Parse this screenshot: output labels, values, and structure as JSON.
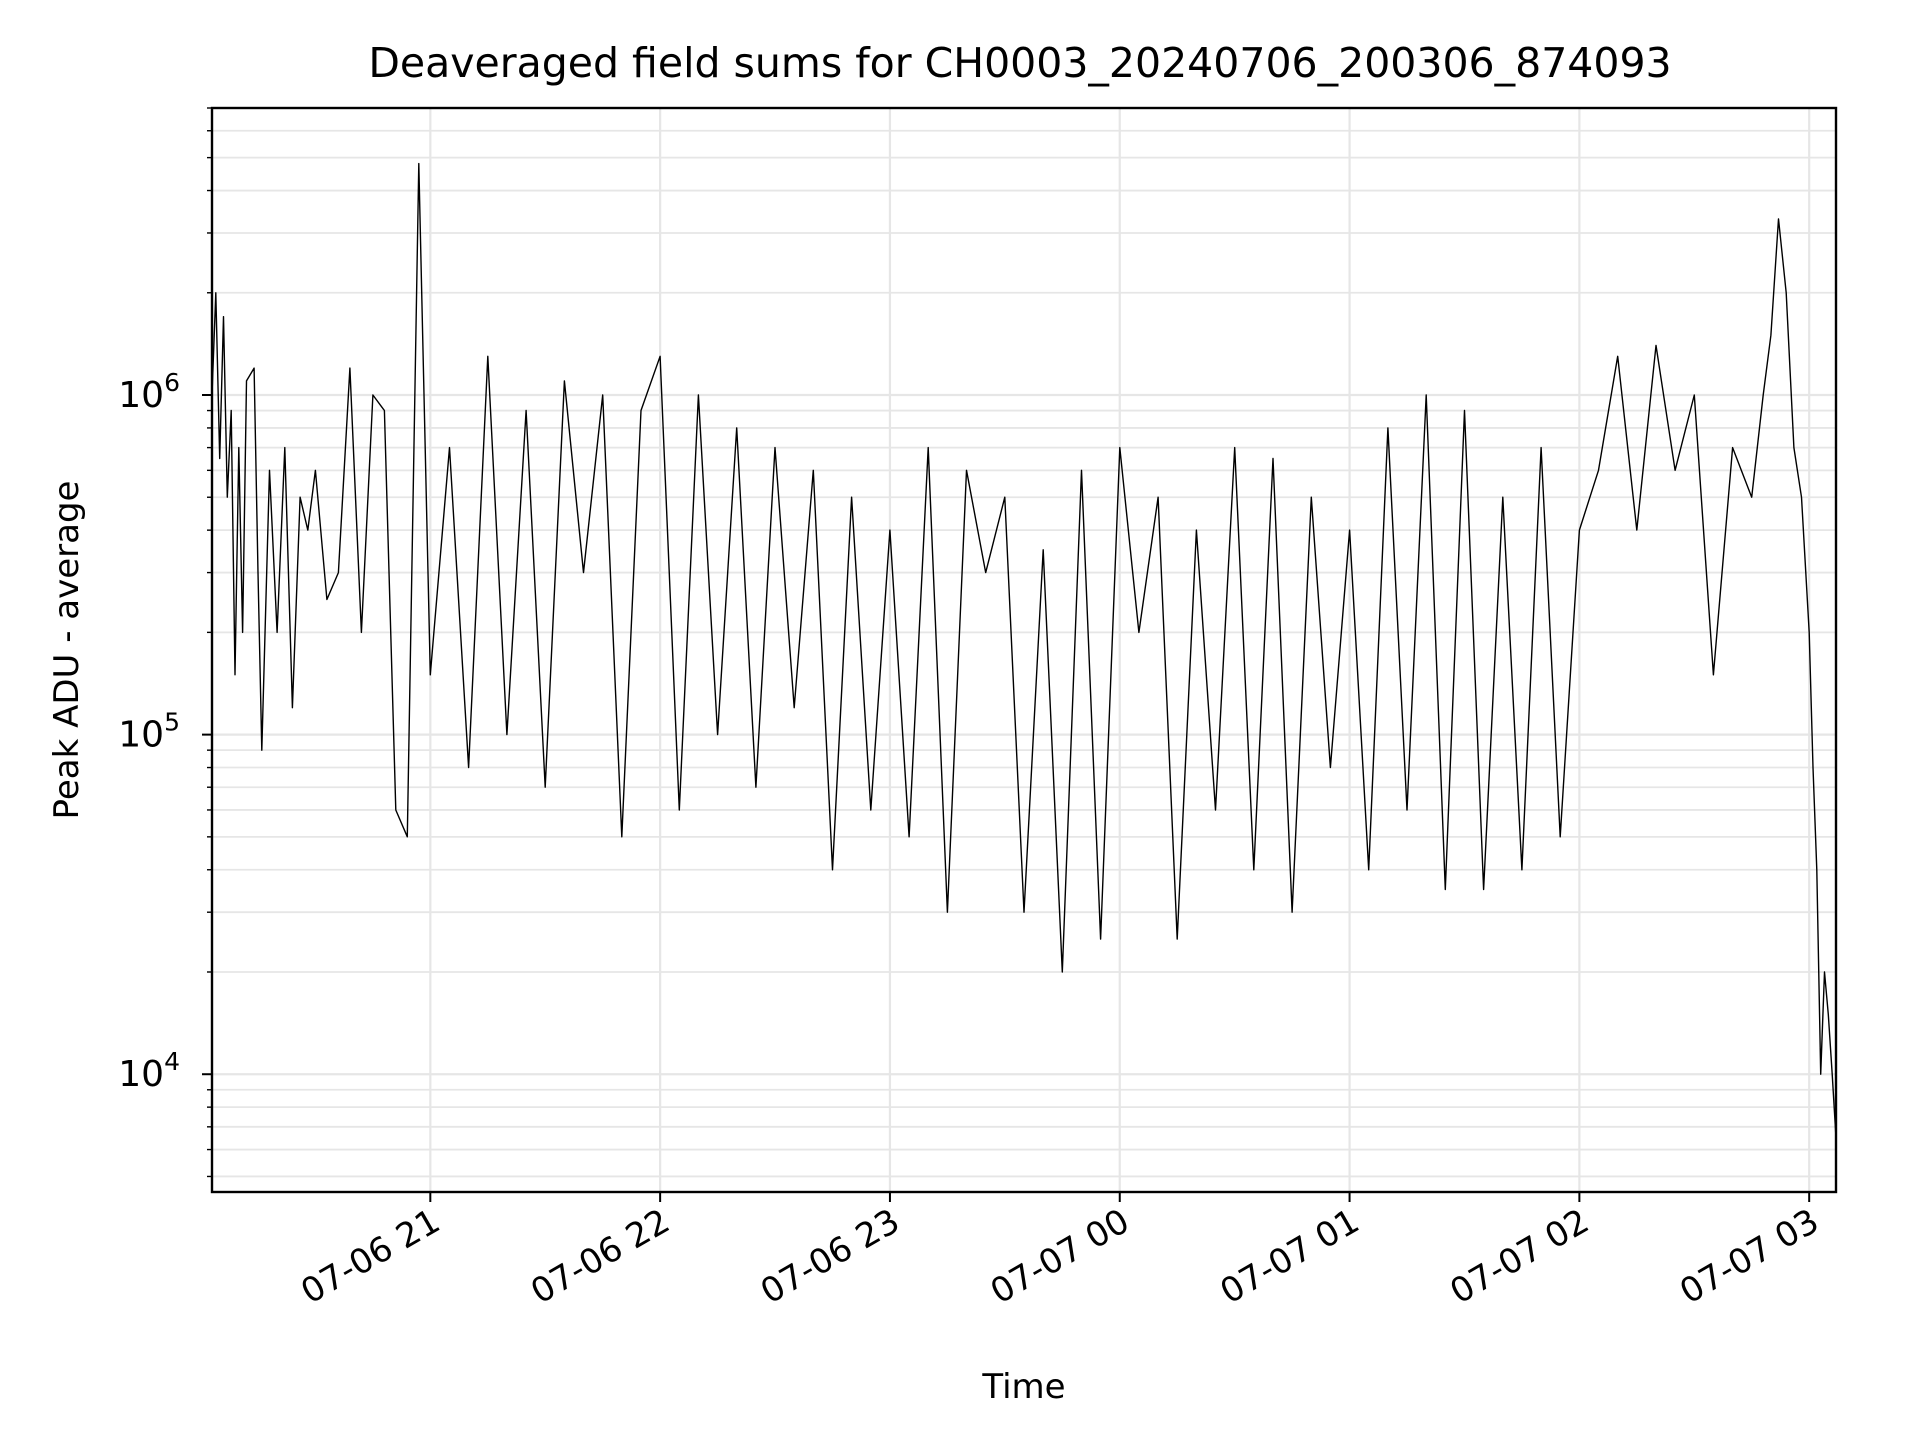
{
  "chart_data": {
    "type": "line",
    "title": "Deaveraged field sums for CH0003_20240706_200306_874093",
    "xlabel": "Time",
    "ylabel": "Peak ADU - average",
    "yscale": "log",
    "ylim": [
      4500,
      7000000
    ],
    "xlim": [
      "07-06 20:03",
      "07-07 03:07"
    ],
    "grid": true,
    "line_color": "#000000",
    "grid_color": "#e6e6e6",
    "x_ticks": [
      {
        "time": "07-06 21:00",
        "label": "07-06 21"
      },
      {
        "time": "07-06 22:00",
        "label": "07-06 22"
      },
      {
        "time": "07-06 23:00",
        "label": "07-06 23"
      },
      {
        "time": "07-07 00:00",
        "label": "07-07 00"
      },
      {
        "time": "07-07 01:00",
        "label": "07-07 01"
      },
      {
        "time": "07-07 02:00",
        "label": "07-07 02"
      },
      {
        "time": "07-07 03:00",
        "label": "07-07 03"
      }
    ],
    "y_ticks": [
      {
        "value": 10000,
        "base": "10",
        "exp": "4"
      },
      {
        "value": 100000,
        "base": "10",
        "exp": "5"
      },
      {
        "value": 1000000,
        "base": "10",
        "exp": "6"
      }
    ],
    "series": [
      {
        "x": [
          "07-06 20:03",
          "07-06 20:04",
          "07-06 20:05",
          "07-06 20:06",
          "07-06 20:07",
          "07-06 20:08",
          "07-06 20:09",
          "07-06 20:10",
          "07-06 20:11",
          "07-06 20:12",
          "07-06 20:14",
          "07-06 20:15",
          "07-06 20:16",
          "07-06 20:18",
          "07-06 20:20",
          "07-06 20:22",
          "07-06 20:24",
          "07-06 20:26",
          "07-06 20:28",
          "07-06 20:30",
          "07-06 20:33",
          "07-06 20:36",
          "07-06 20:39",
          "07-06 20:42",
          "07-06 20:45",
          "07-06 20:48",
          "07-06 20:51",
          "07-06 20:54",
          "07-06 20:57",
          "07-06 21:00",
          "07-06 21:05",
          "07-06 21:10",
          "07-06 21:15",
          "07-06 21:20",
          "07-06 21:25",
          "07-06 21:30",
          "07-06 21:35",
          "07-06 21:40",
          "07-06 21:45",
          "07-06 21:50",
          "07-06 21:55",
          "07-06 22:00",
          "07-06 22:05",
          "07-06 22:10",
          "07-06 22:15",
          "07-06 22:20",
          "07-06 22:25",
          "07-06 22:30",
          "07-06 22:35",
          "07-06 22:40",
          "07-06 22:45",
          "07-06 22:50",
          "07-06 22:55",
          "07-06 23:00",
          "07-06 23:05",
          "07-06 23:10",
          "07-06 23:15",
          "07-06 23:20",
          "07-06 23:25",
          "07-06 23:30",
          "07-06 23:35",
          "07-06 23:40",
          "07-06 23:45",
          "07-06 23:50",
          "07-06 23:55",
          "07-07 00:00",
          "07-07 00:05",
          "07-07 00:10",
          "07-07 00:15",
          "07-07 00:20",
          "07-07 00:25",
          "07-07 00:30",
          "07-07 00:35",
          "07-07 00:40",
          "07-07 00:45",
          "07-07 00:50",
          "07-07 00:55",
          "07-07 01:00",
          "07-07 01:05",
          "07-07 01:10",
          "07-07 01:15",
          "07-07 01:20",
          "07-07 01:25",
          "07-07 01:30",
          "07-07 01:35",
          "07-07 01:40",
          "07-07 01:45",
          "07-07 01:50",
          "07-07 01:55",
          "07-07 02:00",
          "07-07 02:05",
          "07-07 02:10",
          "07-07 02:15",
          "07-07 02:20",
          "07-07 02:25",
          "07-07 02:30",
          "07-07 02:35",
          "07-07 02:40",
          "07-07 02:45",
          "07-07 02:48",
          "07-07 02:50",
          "07-07 02:52",
          "07-07 02:54",
          "07-07 02:56",
          "07-07 02:58",
          "07-07 03:00",
          "07-07 03:01",
          "07-07 03:02",
          "07-07 03:03",
          "07-07 03:04",
          "07-07 03:05",
          "07-07 03:06",
          "07-07 03:07"
        ],
        "y": [
          1000000,
          2000000,
          650000,
          1700000,
          500000,
          900000,
          150000,
          700000,
          200000,
          1100000,
          1200000,
          300000,
          90000,
          600000,
          200000,
          700000,
          120000,
          500000,
          400000,
          600000,
          250000,
          300000,
          1200000,
          200000,
          1000000,
          900000,
          60000,
          50000,
          4800000,
          150000,
          700000,
          80000,
          1300000,
          100000,
          900000,
          70000,
          1100000,
          300000,
          1000000,
          50000,
          900000,
          1300000,
          60000,
          1000000,
          100000,
          800000,
          70000,
          700000,
          120000,
          600000,
          40000,
          500000,
          60000,
          400000,
          50000,
          700000,
          30000,
          600000,
          300000,
          500000,
          30000,
          350000,
          20000,
          600000,
          25000,
          700000,
          200000,
          500000,
          25000,
          400000,
          60000,
          700000,
          40000,
          650000,
          30000,
          500000,
          80000,
          400000,
          40000,
          800000,
          60000,
          1000000,
          35000,
          900000,
          35000,
          500000,
          40000,
          700000,
          50000,
          400000,
          600000,
          1300000,
          400000,
          1400000,
          600000,
          1000000,
          150000,
          700000,
          500000,
          1000000,
          1500000,
          3300000,
          2000000,
          700000,
          500000,
          200000,
          80000,
          40000,
          10000,
          20000,
          15000,
          10000,
          6500
        ]
      }
    ]
  }
}
